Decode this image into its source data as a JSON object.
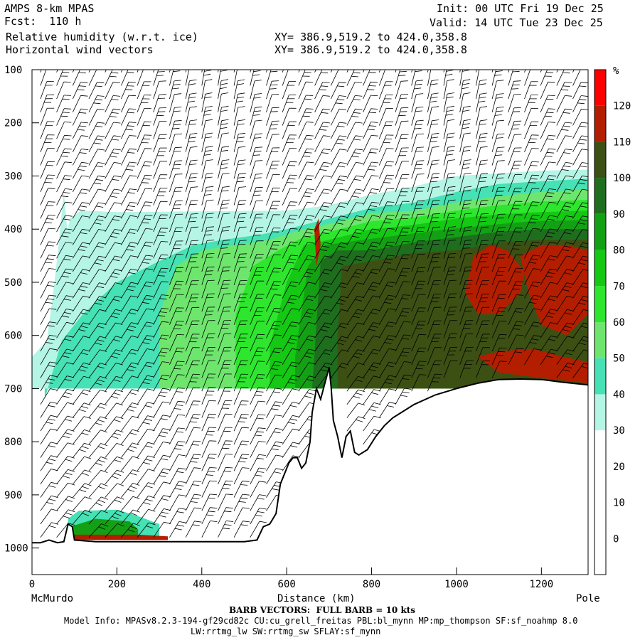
{
  "header": {
    "model": "AMPS 8-km MPAS",
    "fcst": "Fcst:  110 h",
    "field1": "Relative humidity (w.r.t. ice)",
    "field2": "Horizontal wind vectors",
    "init": "Init: 00 UTC Fri 19 Dec 25",
    "valid": "Valid: 14 UTC Tue 23 Dec 25",
    "xy1": "XY= 386.9,519.2 to 424.0,358.8",
    "xy2": "XY= 386.9,519.2 to 424.0,358.8"
  },
  "footer": {
    "left_endpoint": "McMurdo",
    "right_endpoint": "Pole",
    "barb_note": "BARB VECTORS:  FULL BARB = 10 kts",
    "model_info": "Model Info: MPASv8.2.3-194-gf29cd82c CU:cu_grell_freitas PBL:bl_mynn MP:mp_thompson SF:sf_noahmp 8.0",
    "model_info2": "LW:rrtmg_lw SW:rrtmg_sw SFLAY:sf_mynn"
  },
  "chart_data": {
    "type": "heatmap",
    "title": "Relative humidity (w.r.t. ice)",
    "xlabel": "Distance (km)",
    "ylabel": "",
    "xlim": [
      0,
      1310
    ],
    "ylim": [
      1050,
      100
    ],
    "xticks": [
      0,
      200,
      400,
      600,
      800,
      1000,
      1200
    ],
    "yticks": [
      100,
      200,
      300,
      400,
      500,
      600,
      700,
      800,
      900,
      1000
    ],
    "grid": false,
    "colorbar": {
      "unit": "%",
      "levels": [
        -10,
        0,
        10,
        20,
        30,
        40,
        50,
        60,
        70,
        80,
        90,
        100,
        110,
        120,
        130
      ],
      "labels": [
        0,
        10,
        20,
        30,
        40,
        50,
        60,
        70,
        80,
        90,
        100,
        110,
        120
      ],
      "colors": [
        "#ffffff",
        "#ffffff",
        "#ffffff",
        "#ffffff",
        "#b4f5e6",
        "#46e1b4",
        "#6ee66e",
        "#2de62d",
        "#14c814",
        "#14a014",
        "#1e6e1e",
        "#3c5014",
        "#b41e00",
        "#ff0000"
      ]
    },
    "terrain": [
      [
        0,
        990
      ],
      [
        20,
        990
      ],
      [
        40,
        985
      ],
      [
        60,
        990
      ],
      [
        75,
        988
      ],
      [
        85,
        955
      ],
      [
        95,
        960
      ],
      [
        100,
        985
      ],
      [
        150,
        988
      ],
      [
        250,
        988
      ],
      [
        350,
        988
      ],
      [
        500,
        988
      ],
      [
        530,
        985
      ],
      [
        545,
        960
      ],
      [
        560,
        955
      ],
      [
        575,
        935
      ],
      [
        585,
        880
      ],
      [
        595,
        860
      ],
      [
        605,
        840
      ],
      [
        615,
        830
      ],
      [
        625,
        830
      ],
      [
        635,
        850
      ],
      [
        645,
        840
      ],
      [
        655,
        800
      ],
      [
        660,
        745
      ],
      [
        670,
        700
      ],
      [
        680,
        720
      ],
      [
        690,
        690
      ],
      [
        700,
        660
      ],
      [
        705,
        700
      ],
      [
        710,
        760
      ],
      [
        720,
        790
      ],
      [
        730,
        830
      ],
      [
        740,
        790
      ],
      [
        750,
        780
      ],
      [
        760,
        820
      ],
      [
        770,
        825
      ],
      [
        790,
        815
      ],
      [
        810,
        790
      ],
      [
        830,
        770
      ],
      [
        850,
        755
      ],
      [
        870,
        745
      ],
      [
        900,
        730
      ],
      [
        950,
        712
      ],
      [
        1000,
        700
      ],
      [
        1050,
        690
      ],
      [
        1100,
        683
      ],
      [
        1150,
        682
      ],
      [
        1200,
        683
      ],
      [
        1250,
        688
      ],
      [
        1310,
        693
      ]
    ],
    "humidity_regions": [
      {
        "level": 30,
        "polygon": [
          [
            0,
            1050
          ],
          [
            0,
            640
          ],
          [
            35,
            610
          ],
          [
            50,
            520
          ],
          [
            90,
            380
          ],
          [
            115,
            365
          ],
          [
            200,
            368
          ],
          [
            600,
            365
          ],
          [
            700,
            355
          ],
          [
            800,
            335
          ],
          [
            900,
            320
          ],
          [
            1000,
            300
          ],
          [
            1100,
            295
          ],
          [
            1200,
            290
          ],
          [
            1310,
            288
          ],
          [
            1310,
            700
          ],
          [
            0,
            700
          ]
        ]
      },
      {
        "level": 30,
        "polygon": [
          [
            50,
            520
          ],
          [
            60,
            450
          ],
          [
            75,
            330
          ],
          [
            85,
            420
          ],
          [
            70,
            560
          ]
        ]
      },
      {
        "level": 40,
        "polygon": [
          [
            30,
            1050
          ],
          [
            30,
            720
          ],
          [
            70,
            610
          ],
          [
            120,
            560
          ],
          [
            200,
            500
          ],
          [
            300,
            460
          ],
          [
            380,
            430
          ],
          [
            450,
            420
          ],
          [
            540,
            410
          ],
          [
            600,
            400
          ],
          [
            700,
            380
          ],
          [
            800,
            360
          ],
          [
            900,
            350
          ],
          [
            1000,
            330
          ],
          [
            1100,
            315
          ],
          [
            1200,
            310
          ],
          [
            1310,
            305
          ],
          [
            1310,
            700
          ],
          [
            30,
            700
          ]
        ]
      },
      {
        "level": 50,
        "polygon": [
          [
            300,
            560
          ],
          [
            340,
            470
          ],
          [
            400,
            440
          ],
          [
            480,
            430
          ],
          [
            560,
            420
          ],
          [
            640,
            400
          ],
          [
            700,
            390
          ],
          [
            800,
            370
          ],
          [
            900,
            365
          ],
          [
            1000,
            350
          ],
          [
            1100,
            338
          ],
          [
            1200,
            330
          ],
          [
            1310,
            325
          ],
          [
            1310,
            700
          ],
          [
            300,
            700
          ]
        ]
      },
      {
        "level": 60,
        "polygon": [
          [
            480,
            560
          ],
          [
            520,
            470
          ],
          [
            580,
            440
          ],
          [
            640,
            415
          ],
          [
            700,
            405
          ],
          [
            800,
            385
          ],
          [
            900,
            378
          ],
          [
            1000,
            365
          ],
          [
            1100,
            355
          ],
          [
            1200,
            348
          ],
          [
            1310,
            345
          ],
          [
            1310,
            700
          ],
          [
            480,
            700
          ]
        ]
      },
      {
        "level": 70,
        "polygon": [
          [
            560,
            620
          ],
          [
            600,
            500
          ],
          [
            640,
            430
          ],
          [
            700,
            420
          ],
          [
            800,
            400
          ],
          [
            900,
            392
          ],
          [
            1000,
            380
          ],
          [
            1100,
            372
          ],
          [
            1200,
            368
          ],
          [
            1310,
            365
          ],
          [
            1310,
            700
          ],
          [
            560,
            700
          ]
        ]
      },
      {
        "level": 80,
        "polygon": [
          [
            620,
            640
          ],
          [
            650,
            470
          ],
          [
            690,
            430
          ],
          [
            780,
            420
          ],
          [
            880,
            410
          ],
          [
            980,
            400
          ],
          [
            1080,
            392
          ],
          [
            1180,
            385
          ],
          [
            1310,
            383
          ],
          [
            1310,
            700
          ],
          [
            620,
            700
          ]
        ]
      },
      {
        "level": 90,
        "polygon": [
          [
            660,
            700
          ],
          [
            680,
            460
          ],
          [
            720,
            440
          ],
          [
            800,
            440
          ],
          [
            900,
            425
          ],
          [
            1000,
            415
          ],
          [
            1100,
            405
          ],
          [
            1200,
            400
          ],
          [
            1310,
            400
          ],
          [
            1310,
            700
          ],
          [
            660,
            700
          ]
        ]
      },
      {
        "level": 100,
        "polygon": [
          [
            720,
            600
          ],
          [
            730,
            470
          ],
          [
            800,
            460
          ],
          [
            900,
            445
          ],
          [
            1000,
            440
          ],
          [
            1100,
            425
          ],
          [
            1200,
            420
          ],
          [
            1310,
            420
          ],
          [
            1310,
            700
          ],
          [
            720,
            700
          ]
        ]
      },
      {
        "level": 110,
        "polygon": [
          [
            1020,
            520
          ],
          [
            1040,
            450
          ],
          [
            1080,
            430
          ],
          [
            1120,
            440
          ],
          [
            1160,
            480
          ],
          [
            1150,
            520
          ],
          [
            1100,
            560
          ],
          [
            1050,
            560
          ]
        ]
      },
      {
        "level": 110,
        "polygon": [
          [
            1150,
            450
          ],
          [
            1200,
            430
          ],
          [
            1260,
            430
          ],
          [
            1310,
            440
          ],
          [
            1310,
            560
          ],
          [
            1260,
            600
          ],
          [
            1200,
            580
          ],
          [
            1170,
            520
          ]
        ]
      },
      {
        "level": 110,
        "polygon": [
          [
            1050,
            640
          ],
          [
            1100,
            630
          ],
          [
            1180,
            625
          ],
          [
            1250,
            640
          ],
          [
            1310,
            650
          ],
          [
            1310,
            690
          ],
          [
            1200,
            680
          ],
          [
            1100,
            670
          ]
        ]
      },
      {
        "level": 110,
        "polygon": [
          [
            665,
            400
          ],
          [
            675,
            380
          ],
          [
            680,
            430
          ],
          [
            670,
            470
          ]
        ]
      },
      {
        "level": 40,
        "polygon": [
          [
            85,
            945
          ],
          [
            110,
            930
          ],
          [
            200,
            928
          ],
          [
            250,
            940
          ],
          [
            300,
            955
          ],
          [
            300,
            985
          ],
          [
            85,
            985
          ]
        ]
      },
      {
        "level": 80,
        "polygon": [
          [
            90,
            960
          ],
          [
            150,
            945
          ],
          [
            230,
            950
          ],
          [
            250,
            965
          ],
          [
            250,
            982
          ],
          [
            90,
            982
          ]
        ]
      },
      {
        "level": 110,
        "polygon": [
          [
            100,
            975
          ],
          [
            250,
            975
          ],
          [
            320,
            978
          ],
          [
            320,
            985
          ],
          [
            100,
            985
          ]
        ]
      }
    ]
  }
}
